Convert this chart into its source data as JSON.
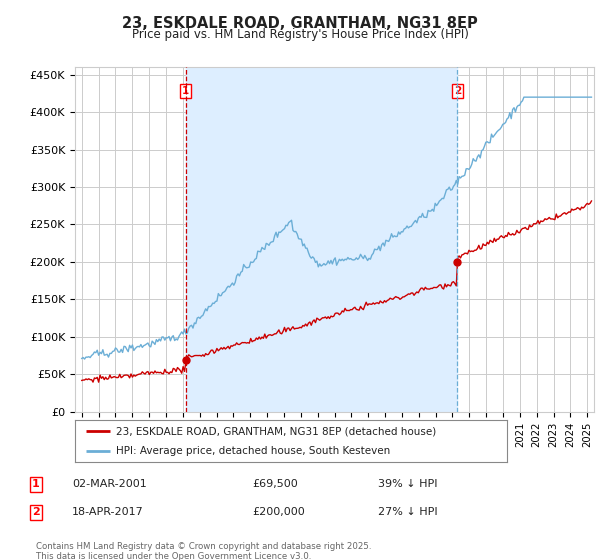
{
  "title": "23, ESKDALE ROAD, GRANTHAM, NG31 8EP",
  "subtitle": "Price paid vs. HM Land Registry's House Price Index (HPI)",
  "ylabel_ticks": [
    "£0",
    "£50K",
    "£100K",
    "£150K",
    "£200K",
    "£250K",
    "£300K",
    "£350K",
    "£400K",
    "£450K"
  ],
  "ytick_values": [
    0,
    50000,
    100000,
    150000,
    200000,
    250000,
    300000,
    350000,
    400000,
    450000
  ],
  "ylim": [
    0,
    460000
  ],
  "xlim_start": 1994.6,
  "xlim_end": 2025.4,
  "hpi_color": "#6baed6",
  "price_color": "#cc0000",
  "vline1_color": "#cc0000",
  "vline2_color": "#6baed6",
  "shade_color": "#ddeeff",
  "purchase1_x": 2001.17,
  "purchase1_y": 69500,
  "purchase2_x": 2017.29,
  "purchase2_y": 200000,
  "legend_line1": "23, ESKDALE ROAD, GRANTHAM, NG31 8EP (detached house)",
  "legend_line2": "HPI: Average price, detached house, South Kesteven",
  "annotation1_label": "1",
  "annotation1_date": "02-MAR-2001",
  "annotation1_price": "£69,500",
  "annotation1_pct": "39% ↓ HPI",
  "annotation2_label": "2",
  "annotation2_date": "18-APR-2017",
  "annotation2_price": "£200,000",
  "annotation2_pct": "27% ↓ HPI",
  "footer": "Contains HM Land Registry data © Crown copyright and database right 2025.\nThis data is licensed under the Open Government Licence v3.0.",
  "background_color": "#ffffff",
  "grid_color": "#cccccc"
}
